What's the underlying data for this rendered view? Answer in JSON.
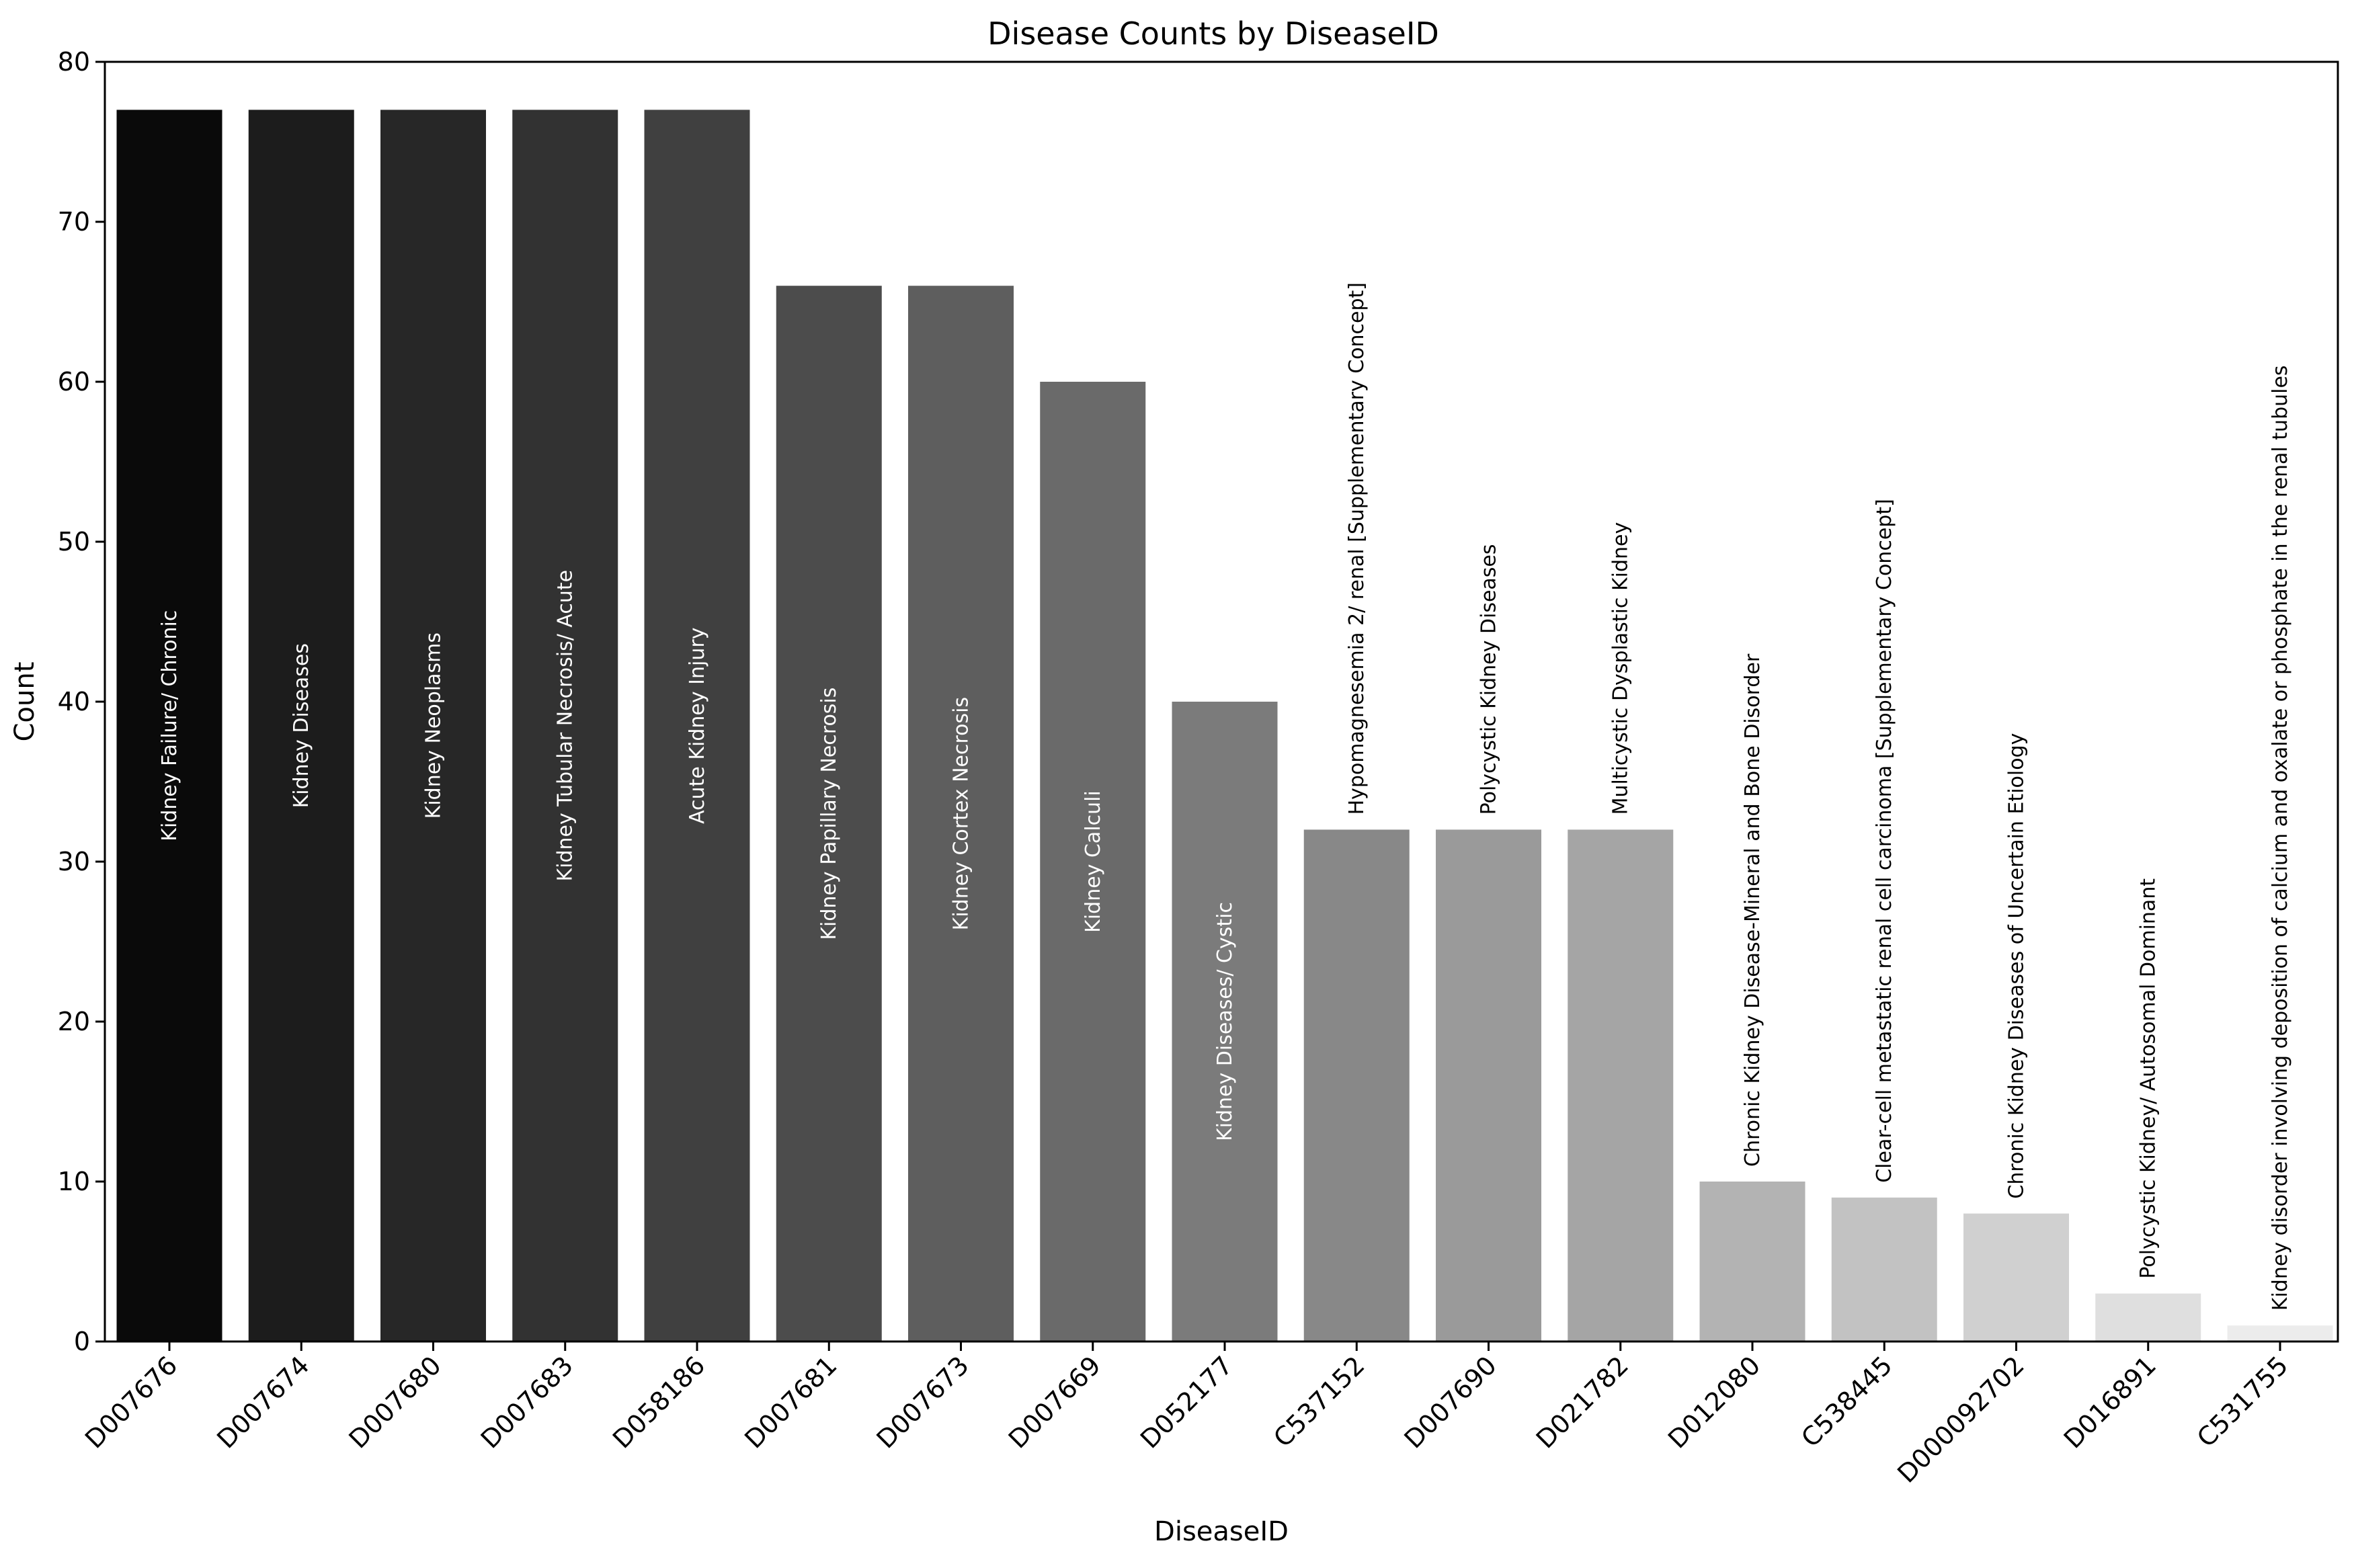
{
  "chart_data": {
    "type": "bar",
    "title": "Disease Counts by DiseaseID",
    "xlabel": "DiseaseID",
    "ylabel": "Count",
    "ylim": [
      0,
      80
    ],
    "yticks": [
      0,
      10,
      20,
      30,
      40,
      50,
      60,
      70,
      80
    ],
    "grid": false,
    "legend": "none",
    "categories": [
      "D007676",
      "D007674",
      "D007680",
      "D007683",
      "D058186",
      "D007681",
      "D007673",
      "D007669",
      "D052177",
      "C537152",
      "D007690",
      "D021782",
      "D012080",
      "C538445",
      "D000092702",
      "D016891",
      "C531755"
    ],
    "values": [
      77,
      77,
      77,
      77,
      77,
      66,
      66,
      60,
      40,
      32,
      32,
      32,
      10,
      9,
      8,
      3,
      1
    ],
    "bar_labels": [
      "Kidney Failure/ Chronic",
      "Kidney Diseases",
      "Kidney Neoplasms",
      "Kidney Tubular Necrosis/ Acute",
      "Acute Kidney Injury",
      "Kidney Papillary Necrosis",
      "Kidney Cortex Necrosis",
      "Kidney Calculi",
      "Kidney Diseases/ Cystic",
      "Hypomagnesemia 2/ renal [Supplementary Concept]",
      "Polycystic Kidney Diseases",
      "Multicystic Dysplastic Kidney",
      "Chronic Kidney Disease-Mineral and Bone Disorder",
      "Clear-cell metastatic renal cell carcinoma [Supplementary Concept]",
      "Chronic Kidney Diseases of Uncertain Etiology",
      "Polycystic Kidney/ Autosomal Dominant",
      "Kidney disorder involving deposition of calcium and oxalate or phosphate in the renal tubules"
    ],
    "bar_colors": [
      "#0a0a0a",
      "#1c1c1c",
      "#272727",
      "#323232",
      "#404040",
      "#4c4c4c",
      "#5e5e5e",
      "#6a6a6a",
      "#7b7b7b",
      "#888888",
      "#9a9a9a",
      "#a5a5a5",
      "#b3b3b3",
      "#c2c2c2",
      "#d0d0d0",
      "#dfdfdf",
      "#ececec"
    ]
  }
}
